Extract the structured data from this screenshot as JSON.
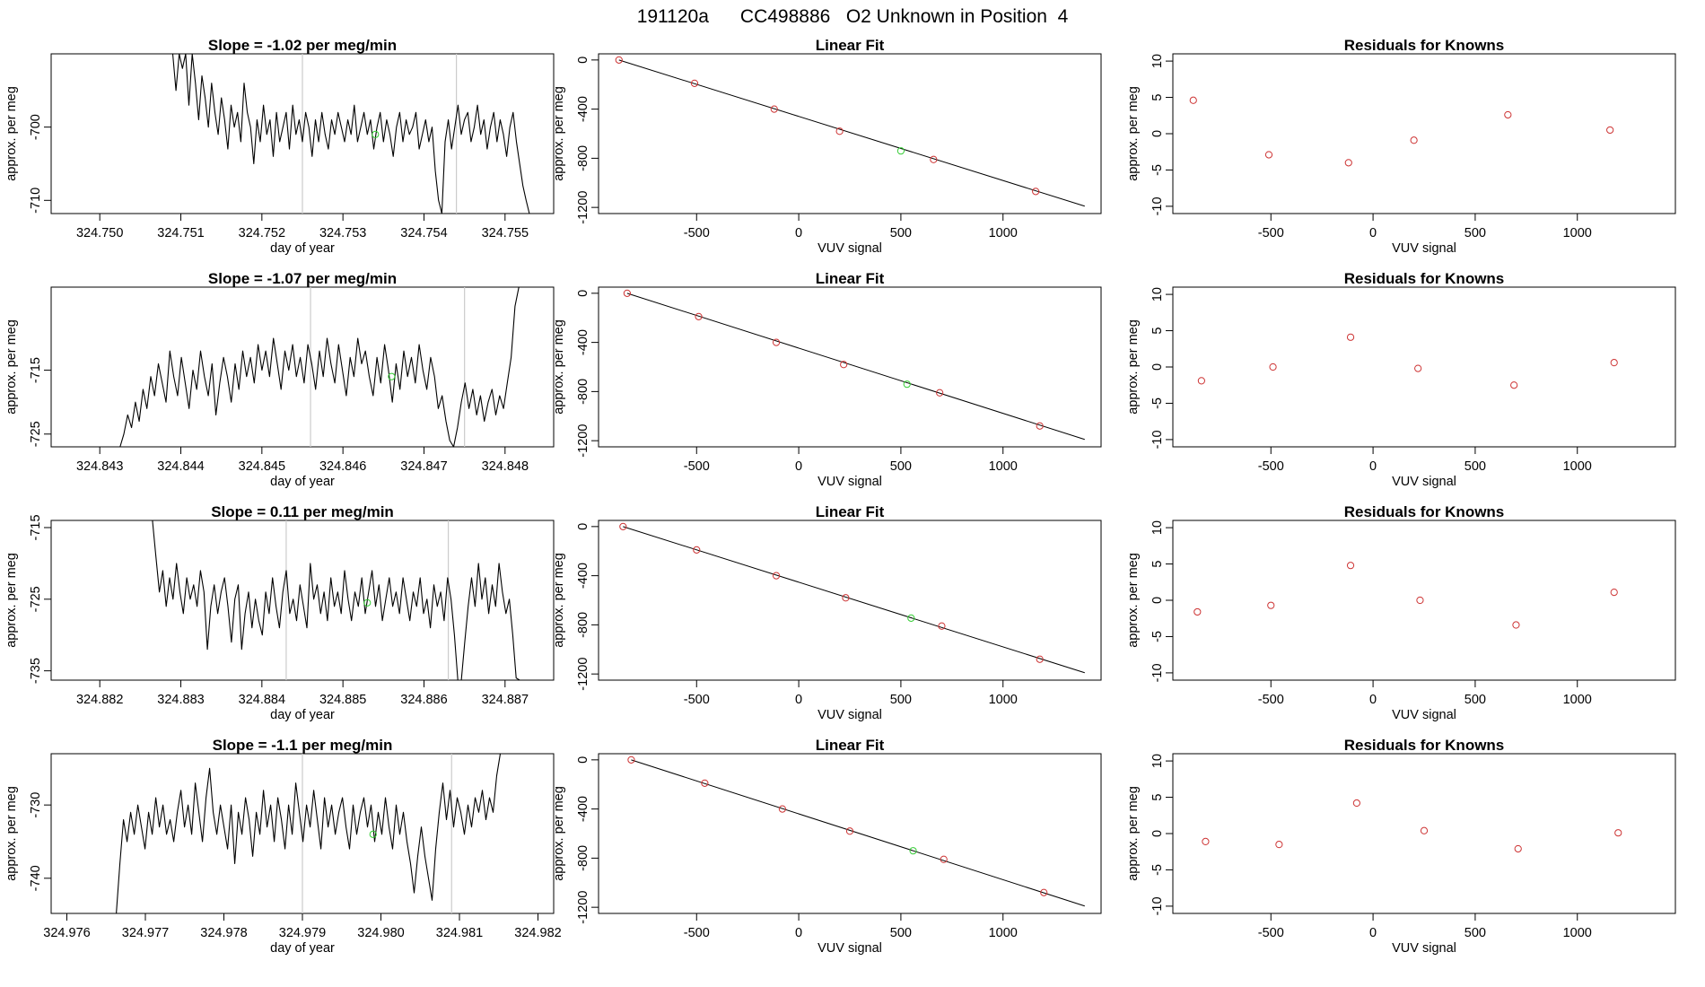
{
  "figure": {
    "title": "191120a      CC498886   O2 Unknown in Position  4"
  },
  "colors": {
    "trace": "#000000",
    "known_point": "#cd3333",
    "unknown_point": "#33cc33",
    "marker_line": "#cccccc"
  },
  "chart_data": [
    {
      "row": 1,
      "type": "line",
      "title": "Slope =  -1.02  per meg/min",
      "xlabel": "day of year",
      "ylabel": "approx. per meg",
      "xlim": [
        324.7494,
        324.7556
      ],
      "ylim": [
        -711.8,
        -690.0
      ],
      "xticks": [
        324.75,
        324.751,
        324.752,
        324.753,
        324.754,
        324.755
      ],
      "xtick_labels": [
        "324.750",
        "324.751",
        "324.752",
        "324.753",
        "324.754",
        "324.755"
      ],
      "yticks": [
        -700,
        -710
      ],
      "ytick_labels": [
        "-700",
        "-710"
      ],
      "vlines": [
        324.7525,
        324.7544
      ],
      "marker": {
        "x": 324.7534,
        "y": -701.0
      },
      "trace_start": 324.7509,
      "trace_end": 324.7553,
      "trace_values": [
        -688,
        -695,
        -689,
        -692,
        -687,
        -697,
        -690,
        -694,
        -699,
        -693,
        -696,
        -700,
        -694,
        -698,
        -701,
        -696,
        -699,
        -703,
        -697,
        -700,
        -698,
        -702,
        -694,
        -698,
        -700,
        -705,
        -699,
        -702,
        -697,
        -701,
        -699,
        -704,
        -698,
        -702,
        -700,
        -698,
        -703,
        -697,
        -701,
        -699,
        -702,
        -698,
        -700,
        -704,
        -699,
        -702,
        -698,
        -701,
        -703,
        -699,
        -701,
        -698,
        -700,
        -702,
        -699,
        -701,
        -697,
        -702,
        -700,
        -698,
        -701,
        -699,
        -703,
        -700,
        -698,
        -702,
        -699,
        -701,
        -704,
        -700,
        -698,
        -702,
        -699,
        -701,
        -700,
        -698,
        -703,
        -701,
        -699,
        -702,
        -700,
        -706,
        -710,
        -716,
        -702,
        -699,
        -703,
        -700,
        -697,
        -701,
        -699,
        -698,
        -702,
        -700,
        -697,
        -701,
        -699,
        -703,
        -700,
        -698,
        -702,
        -699,
        -701,
        -704,
        -700,
        -698,
        -702,
        -705,
        -708,
        -710,
        -713
      ]
    },
    {
      "row": 1,
      "type": "scatter",
      "title": "Linear Fit",
      "xlabel": "VUV signal",
      "ylabel": "approx. per meg",
      "xlim": [
        -980,
        1480
      ],
      "ylim": [
        -1250,
        50
      ],
      "xticks": [
        -500,
        0,
        500,
        1000
      ],
      "xtick_labels": [
        "-500",
        "0",
        "500",
        "1000"
      ],
      "yticks": [
        0,
        -400,
        -800,
        -1200
      ],
      "ytick_labels": [
        "0",
        "-400",
        "-800",
        "-1200"
      ],
      "fit_line": {
        "x": [
          -880,
          1400
        ],
        "y": [
          0,
          -1190
        ]
      },
      "knowns": {
        "x": [
          -880,
          -510,
          -120,
          200,
          660,
          1160
        ],
        "y": [
          0,
          -190,
          -400,
          -580,
          -810,
          -1070
        ]
      },
      "unknown": {
        "x": [
          500
        ],
        "y": [
          -740
        ]
      }
    },
    {
      "row": 1,
      "type": "scatter",
      "title": "Residuals for Knowns",
      "xlabel": "VUV signal",
      "ylabel": "approx. per meg",
      "xlim": [
        -980,
        1480
      ],
      "ylim": [
        -11,
        11
      ],
      "xticks": [
        -500,
        0,
        500,
        1000
      ],
      "xtick_labels": [
        "-500",
        "0",
        "500",
        "1000"
      ],
      "yticks": [
        10,
        5,
        0,
        -5,
        -10
      ],
      "ytick_labels": [
        "10",
        "5",
        "0",
        "-5",
        "-10"
      ],
      "knowns": {
        "x": [
          -880,
          -510,
          -120,
          200,
          660,
          1160
        ],
        "y": [
          4.6,
          -2.9,
          -4.0,
          -0.9,
          2.6,
          0.5
        ]
      }
    },
    {
      "row": 2,
      "type": "line",
      "title": "Slope =  -1.07  per meg/min",
      "xlabel": "day of year",
      "ylabel": "approx. per meg",
      "xlim": [
        324.8424,
        324.8486
      ],
      "ylim": [
        -727.0,
        -702.0
      ],
      "xticks": [
        324.843,
        324.844,
        324.845,
        324.846,
        324.847,
        324.848
      ],
      "xtick_labels": [
        "324.843",
        "324.844",
        "324.845",
        "324.846",
        "324.847",
        "324.848"
      ],
      "yticks": [
        -715,
        -725
      ],
      "ytick_labels": [
        "-715",
        "-725"
      ],
      "vlines": [
        324.8456,
        324.8475
      ],
      "marker": {
        "x": 324.8466,
        "y": -716.0
      },
      "trace_start": 324.84325,
      "trace_end": 324.84817,
      "trace_values": [
        -729,
        -725,
        -722,
        -724,
        -720,
        -723,
        -718,
        -721,
        -716,
        -719,
        -714,
        -717,
        -720,
        -712,
        -716,
        -719,
        -713,
        -717,
        -721,
        -715,
        -718,
        -712,
        -716,
        -719,
        -714,
        -722,
        -717,
        -713,
        -716,
        -720,
        -714,
        -718,
        -712,
        -716,
        -713,
        -717,
        -711,
        -715,
        -712,
        -716,
        -710,
        -714,
        -718,
        -712,
        -715,
        -711,
        -716,
        -713,
        -717,
        -711,
        -714,
        -718,
        -712,
        -716,
        -710,
        -714,
        -717,
        -711,
        -715,
        -719,
        -713,
        -716,
        -710,
        -714,
        -712,
        -716,
        -719,
        -713,
        -717,
        -711,
        -715,
        -720,
        -714,
        -718,
        -712,
        -716,
        -713,
        -717,
        -711,
        -715,
        -718,
        -713,
        -716,
        -721,
        -719,
        -723,
        -726,
        -729,
        -724,
        -720,
        -717,
        -721,
        -718,
        -722,
        -719,
        -723,
        -720,
        -718,
        -722,
        -719,
        -721,
        -717,
        -713,
        -705,
        -698
      ]
    },
    {
      "row": 2,
      "type": "scatter",
      "title": "Linear Fit",
      "xlabel": "VUV signal",
      "ylabel": "approx. per meg",
      "xlim": [
        -980,
        1480
      ],
      "ylim": [
        -1250,
        50
      ],
      "xticks": [
        -500,
        0,
        500,
        1000
      ],
      "xtick_labels": [
        "-500",
        "0",
        "500",
        "1000"
      ],
      "yticks": [
        0,
        -400,
        -800,
        -1200
      ],
      "ytick_labels": [
        "0",
        "-400",
        "-800",
        "-1200"
      ],
      "fit_line": {
        "x": [
          -840,
          1400
        ],
        "y": [
          0,
          -1190
        ]
      },
      "knowns": {
        "x": [
          -840,
          -490,
          -110,
          220,
          690,
          1180
        ],
        "y": [
          0,
          -190,
          -400,
          -580,
          -810,
          -1080
        ]
      },
      "unknown": {
        "x": [
          530
        ],
        "y": [
          -740
        ]
      }
    },
    {
      "row": 2,
      "type": "scatter",
      "title": "Residuals for Knowns",
      "xlabel": "VUV signal",
      "ylabel": "approx. per meg",
      "xlim": [
        -980,
        1480
      ],
      "ylim": [
        -11,
        11
      ],
      "xticks": [
        -500,
        0,
        500,
        1000
      ],
      "xtick_labels": [
        "-500",
        "0",
        "500",
        "1000"
      ],
      "yticks": [
        10,
        5,
        0,
        -5,
        -10
      ],
      "ytick_labels": [
        "10",
        "5",
        "0",
        "-5",
        "-10"
      ],
      "knowns": {
        "x": [
          -840,
          -490,
          -110,
          220,
          690,
          1180
        ],
        "y": [
          -1.9,
          0.0,
          4.1,
          -0.2,
          -2.5,
          0.6
        ]
      }
    },
    {
      "row": 3,
      "type": "line",
      "title": "Slope =  0.11  per meg/min",
      "xlabel": "day of year",
      "ylabel": "approx. per meg",
      "xlim": [
        324.8814,
        324.8876
      ],
      "ylim": [
        -736.3,
        -714.0
      ],
      "xticks": [
        324.882,
        324.883,
        324.884,
        324.885,
        324.886,
        324.887
      ],
      "xtick_labels": [
        "324.882",
        "324.883",
        "324.884",
        "324.885",
        "324.886",
        "324.887"
      ],
      "yticks": [
        -715,
        -725,
        -735
      ],
      "ytick_labels": [
        "-715",
        "-725",
        "-735"
      ],
      "vlines": [
        324.8843,
        324.8863
      ],
      "marker": {
        "x": 324.8853,
        "y": -725.5
      },
      "trace_start": 324.88265,
      "trace_end": 324.88718,
      "trace_values": [
        -712,
        -719,
        -724,
        -721,
        -726,
        -722,
        -725,
        -720,
        -724,
        -727,
        -722,
        -725,
        -723,
        -726,
        -721,
        -724,
        -732,
        -726,
        -723,
        -727,
        -724,
        -722,
        -726,
        -731,
        -725,
        -723,
        -732,
        -727,
        -724,
        -729,
        -725,
        -728,
        -730,
        -724,
        -727,
        -722,
        -726,
        -729,
        -724,
        -721,
        -727,
        -725,
        -728,
        -723,
        -726,
        -729,
        -720,
        -725,
        -723,
        -727,
        -724,
        -728,
        -722,
        -726,
        -724,
        -727,
        -721,
        -725,
        -728,
        -724,
        -726,
        -722,
        -727,
        -724,
        -721,
        -726,
        -723,
        -728,
        -725,
        -722,
        -726,
        -724,
        -727,
        -722,
        -725,
        -728,
        -724,
        -726,
        -722,
        -727,
        -725,
        -729,
        -723,
        -726,
        -724,
        -728,
        -722,
        -725,
        -730,
        -737,
        -740,
        -731,
        -726,
        -722,
        -726,
        -720,
        -725,
        -722,
        -727,
        -723,
        -726,
        -720,
        -724,
        -727,
        -725,
        -730,
        -736,
        -742
      ]
    },
    {
      "row": 3,
      "type": "scatter",
      "title": "Linear Fit",
      "xlabel": "VUV signal",
      "ylabel": "approx. per meg",
      "xlim": [
        -980,
        1480
      ],
      "ylim": [
        -1250,
        50
      ],
      "xticks": [
        -500,
        0,
        500,
        1000
      ],
      "xtick_labels": [
        "-500",
        "0",
        "500",
        "1000"
      ],
      "yticks": [
        0,
        -400,
        -800,
        -1200
      ],
      "ytick_labels": [
        "0",
        "-400",
        "-800",
        "-1200"
      ],
      "fit_line": {
        "x": [
          -860,
          1400
        ],
        "y": [
          0,
          -1190
        ]
      },
      "knowns": {
        "x": [
          -860,
          -500,
          -110,
          230,
          700,
          1180
        ],
        "y": [
          0,
          -190,
          -400,
          -580,
          -810,
          -1080
        ]
      },
      "unknown": {
        "x": [
          550
        ],
        "y": [
          -745
        ]
      }
    },
    {
      "row": 3,
      "type": "scatter",
      "title": "Residuals for Knowns",
      "xlabel": "VUV signal",
      "ylabel": "approx. per meg",
      "xlim": [
        -980,
        1480
      ],
      "ylim": [
        -11,
        11
      ],
      "xticks": [
        -500,
        0,
        500,
        1000
      ],
      "xtick_labels": [
        "-500",
        "0",
        "500",
        "1000"
      ],
      "yticks": [
        10,
        5,
        0,
        -5,
        -10
      ],
      "ytick_labels": [
        "10",
        "5",
        "0",
        "-5",
        "-10"
      ],
      "knowns": {
        "x": [
          -860,
          -500,
          -110,
          230,
          700,
          1180
        ],
        "y": [
          -1.6,
          -0.7,
          4.8,
          0.0,
          -3.4,
          1.1
        ]
      }
    },
    {
      "row": 4,
      "type": "line",
      "title": "Slope =  -1.1  per meg/min",
      "xlabel": "day of year",
      "ylabel": "approx. per meg",
      "xlim": [
        324.9758,
        324.9822
      ],
      "ylim": [
        -744.8,
        -723.0
      ],
      "xticks": [
        324.976,
        324.977,
        324.978,
        324.979,
        324.98,
        324.981,
        324.982
      ],
      "xtick_labels": [
        "324.976",
        "324.977",
        "324.978",
        "324.979",
        "324.980",
        "324.981",
        "324.982"
      ],
      "yticks": [
        -730,
        -740
      ],
      "ytick_labels": [
        "-730",
        "-740"
      ],
      "vlines": [
        324.979,
        324.9809
      ],
      "marker": {
        "x": 324.9799,
        "y": -734.0
      },
      "trace_start": 324.97663,
      "trace_end": 324.98152,
      "trace_values": [
        -746,
        -738,
        -732,
        -735,
        -731,
        -734,
        -730,
        -733,
        -736,
        -731,
        -734,
        -729,
        -733,
        -730,
        -734,
        -732,
        -735,
        -731,
        -728,
        -733,
        -730,
        -734,
        -727,
        -731,
        -735,
        -729,
        -725,
        -731,
        -734,
        -730,
        -733,
        -736,
        -730,
        -738,
        -731,
        -734,
        -729,
        -732,
        -737,
        -731,
        -734,
        -728,
        -733,
        -730,
        -735,
        -729,
        -732,
        -736,
        -730,
        -734,
        -727,
        -731,
        -735,
        -730,
        -733,
        -728,
        -732,
        -736,
        -729,
        -733,
        -730,
        -734,
        -731,
        -729,
        -733,
        -736,
        -730,
        -734,
        -731,
        -729,
        -733,
        -730,
        -735,
        -731,
        -734,
        -729,
        -733,
        -736,
        -730,
        -734,
        -731,
        -735,
        -738,
        -742,
        -737,
        -733,
        -737,
        -740,
        -743,
        -736,
        -731,
        -727,
        -732,
        -728,
        -733,
        -729,
        -731,
        -734,
        -730,
        -733,
        -729,
        -731,
        -728,
        -732,
        -729,
        -731,
        -726,
        -720
      ]
    },
    {
      "row": 4,
      "type": "scatter",
      "title": "Linear Fit",
      "xlabel": "VUV signal",
      "ylabel": "approx. per meg",
      "xlim": [
        -980,
        1480
      ],
      "ylim": [
        -1250,
        50
      ],
      "xticks": [
        -500,
        0,
        500,
        1000
      ],
      "xtick_labels": [
        "-500",
        "0",
        "500",
        "1000"
      ],
      "yticks": [
        0,
        -400,
        -800,
        -1200
      ],
      "ytick_labels": [
        "0",
        "-400",
        "-800",
        "-1200"
      ],
      "fit_line": {
        "x": [
          -820,
          1400
        ],
        "y": [
          0,
          -1190
        ]
      },
      "knowns": {
        "x": [
          -820,
          -460,
          -80,
          250,
          710,
          1200
        ],
        "y": [
          0,
          -190,
          -400,
          -580,
          -810,
          -1080
        ]
      },
      "unknown": {
        "x": [
          560
        ],
        "y": [
          -740
        ]
      }
    },
    {
      "row": 4,
      "type": "scatter",
      "title": "Residuals for Knowns",
      "xlabel": "VUV signal",
      "ylabel": "approx. per meg",
      "xlim": [
        -980,
        1480
      ],
      "ylim": [
        -11,
        11
      ],
      "xticks": [
        -500,
        0,
        500,
        1000
      ],
      "xtick_labels": [
        "-500",
        "0",
        "500",
        "1000"
      ],
      "yticks": [
        10,
        5,
        0,
        -5,
        -10
      ],
      "ytick_labels": [
        "10",
        "5",
        "0",
        "-5",
        "-10"
      ],
      "knowns": {
        "x": [
          -820,
          -460,
          -80,
          250,
          710,
          1200
        ],
        "y": [
          -1.1,
          -1.5,
          4.2,
          0.4,
          -2.1,
          0.1
        ]
      }
    }
  ]
}
